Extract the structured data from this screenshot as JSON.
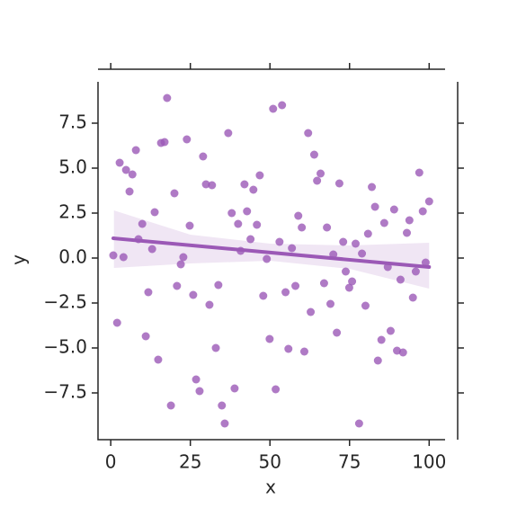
{
  "chart_data": {
    "type": "scatter",
    "xlabel": "x",
    "ylabel": "y",
    "xlim": [
      -4,
      105
    ],
    "ylim": [
      -10.1,
      9.8
    ],
    "xticks": [
      0,
      25,
      50,
      75,
      100
    ],
    "yticks": [
      {
        "value": -7.5,
        "label": "−7.5"
      },
      {
        "value": -5,
        "label": "−5.0"
      },
      {
        "value": -2.5,
        "label": "−2.5"
      },
      {
        "value": 0,
        "label": "0.0"
      },
      2.5,
      {
        "value": 5,
        "label": "5.0"
      },
      7.5
    ],
    "color": "#9b59b6",
    "x": [
      0.8,
      2,
      2.8,
      4,
      4.8,
      5.9,
      6.8,
      7.9,
      8.7,
      9.9,
      11,
      11.8,
      13,
      13.8,
      14.9,
      15.8,
      16.9,
      17.7,
      18.9,
      20,
      20.8,
      22,
      22.8,
      23.9,
      24.8,
      25.9,
      26.8,
      27.9,
      29,
      29.9,
      31,
      31.8,
      33,
      33.8,
      34.9,
      35.8,
      36.9,
      38,
      38.9,
      40,
      40.8,
      42,
      42.8,
      43.9,
      44.8,
      45.9,
      46.8,
      47.9,
      49,
      49.9,
      51,
      51.8,
      53,
      53.8,
      54.9,
      55.8,
      56.9,
      58,
      58.9,
      60,
      60.8,
      62,
      62.8,
      63.9,
      64.8,
      65.9,
      67,
      67.9,
      69,
      69.9,
      71,
      71.8,
      73,
      73.8,
      74.9,
      75.8,
      76.9,
      78,
      78.9,
      80,
      80.8,
      82,
      83,
      83.9,
      85,
      85.9,
      87,
      87.9,
      89,
      89.9,
      91,
      91.8,
      93,
      93.8,
      94.9,
      95.8,
      96.9,
      98,
      98.9,
      100
    ],
    "y": [
      0.15,
      -3.6,
      5.3,
      0.05,
      4.9,
      3.7,
      4.65,
      6,
      1.05,
      1.9,
      -4.35,
      -1.9,
      0.5,
      2.55,
      -5.65,
      6.4,
      6.45,
      8.9,
      -8.2,
      3.6,
      -1.55,
      -0.35,
      0.05,
      6.6,
      1.8,
      -2.05,
      -6.75,
      -7.4,
      5.65,
      4.1,
      -2.6,
      4.05,
      -5,
      -1.5,
      -8.2,
      -9.2,
      6.95,
      2.5,
      -7.25,
      1.9,
      0.4,
      4.1,
      2.6,
      1.05,
      3.8,
      1.85,
      4.6,
      -2.1,
      -0.05,
      -4.5,
      8.3,
      -7.3,
      0.9,
      8.5,
      -1.9,
      -5.05,
      0.55,
      -1.55,
      2.35,
      1.7,
      -5.2,
      6.95,
      -3,
      5.75,
      4.3,
      4.7,
      -1.4,
      1.7,
      -2.55,
      0.2,
      -4.15,
      4.15,
      0.9,
      -0.75,
      -1.65,
      -1.3,
      0.8,
      -9.2,
      0.25,
      -2.65,
      1.35,
      3.95,
      2.85,
      -5.7,
      -4.55,
      1.95,
      -0.5,
      -4.05,
      2.7,
      -5.15,
      -1.2,
      -5.25,
      1.4,
      2.1,
      -2.2,
      -0.75,
      4.75,
      2.6,
      -0.25,
      3.15
    ],
    "fit": {
      "x": [
        0.8,
        100
      ],
      "y": [
        1.1,
        -0.5
      ]
    },
    "ci": {
      "x": [
        1,
        25,
        50,
        75,
        100
      ],
      "upper": [
        2.65,
        1.3,
        0.8,
        0.7,
        0.85
      ],
      "lower": [
        -0.55,
        -0.3,
        -0.15,
        -0.6,
        -1.7
      ]
    }
  }
}
